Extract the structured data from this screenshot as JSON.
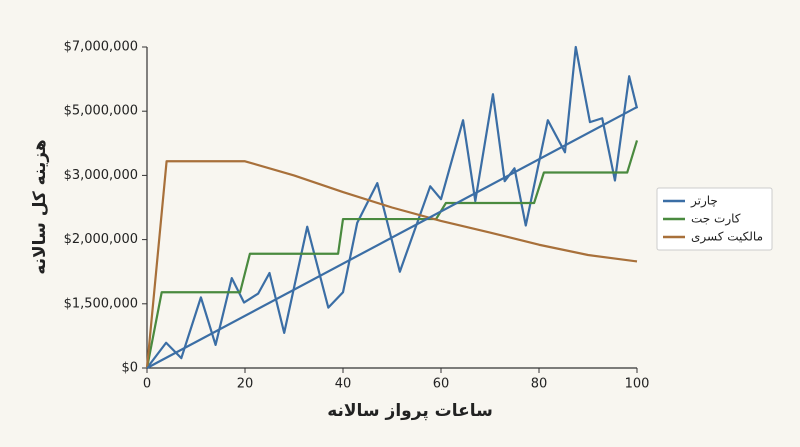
{
  "chart_data": {
    "type": "line",
    "xlabel": "ساعات پرواز سالانه",
    "ylabel": "هزینه کل سالانه",
    "xlim": [
      0,
      100
    ],
    "xticks": [
      0,
      20,
      40,
      60,
      80,
      100
    ],
    "ylim": [
      0,
      7000000
    ],
    "yticks": [
      {
        "value": 0,
        "label": "$0"
      },
      {
        "value": 1500000,
        "label": "$1,500,000"
      },
      {
        "value": 2000000,
        "label": "$2,000,000"
      },
      {
        "value": 3000000,
        "label": "$3,000,000"
      },
      {
        "value": 5000000,
        "label": "$5,000,000"
      },
      {
        "value": 7000000,
        "label": "$7,000,000"
      }
    ],
    "legend": "right",
    "series": [
      {
        "name": "چارتر",
        "color": "#3b6ea5",
        "x": [
          0,
          3.9,
          7,
          11,
          14,
          17.3,
          19.8,
          22.7,
          25,
          28,
          32.7,
          37,
          40,
          42.9,
          47,
          51.6,
          57.8,
          60,
          64.5,
          67,
          70.6,
          73,
          75,
          77.3,
          81.8,
          85.3,
          87.5,
          90.4,
          92.9,
          95.5,
          98.4,
          100
        ],
        "values": [
          0,
          590000,
          230000,
          1550000,
          540000,
          1700000,
          1510000,
          1580000,
          1740000,
          820000,
          2200000,
          1410000,
          1590000,
          2260000,
          2880000,
          1750000,
          2830000,
          2630000,
          4720000,
          2600000,
          5530000,
          2910000,
          3220000,
          2220000,
          4720000,
          3720000,
          7000000,
          4660000,
          4780000,
          2920000,
          6090000,
          5090000
        ]
      },
      {
        "name": "کارت جت",
        "color": "#4a8a3f",
        "x": [
          0,
          3,
          19,
          21,
          39,
          40,
          59,
          61,
          79,
          81,
          98,
          100
        ],
        "values": [
          0,
          1590000,
          1590000,
          1890000,
          1890000,
          2320000,
          2320000,
          2570000,
          2570000,
          3090000,
          3090000,
          4090000
        ]
      },
      {
        "name": "مالکیت کسری",
        "color": "#a8703a",
        "x": [
          0,
          4,
          20,
          30,
          40,
          50,
          60,
          70,
          80,
          90,
          100
        ],
        "values": [
          0,
          3440000,
          3440000,
          3000000,
          2740000,
          2500000,
          2290000,
          2110000,
          1960000,
          1880000,
          1830000
        ]
      },
      {
        "color": "#3b6ea5",
        "x": [
          0,
          100
        ],
        "values": [
          0,
          5130000
        ]
      }
    ]
  }
}
